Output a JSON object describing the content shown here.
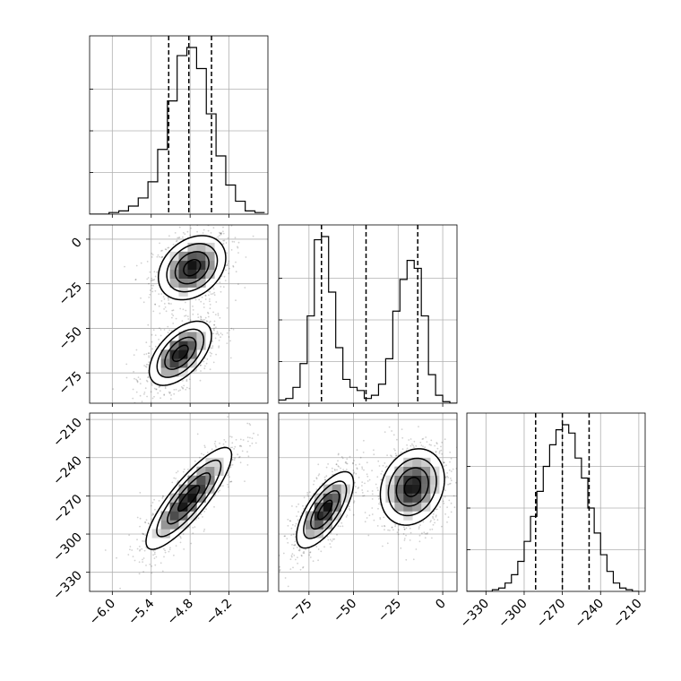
{
  "chart_data": {
    "type": "corner",
    "parameters": [
      {
        "key": "p1",
        "label": "",
        "range": [
          -6.35,
          -3.6
        ],
        "ticks": [
          -6.0,
          -5.4,
          -4.8,
          -4.2
        ],
        "tick_labels": [
          "−6.0",
          "−5.4",
          "−4.8",
          "−4.2"
        ],
        "quantiles": [
          -5.13,
          -4.82,
          -4.47
        ]
      },
      {
        "key": "p2",
        "label": "",
        "range": [
          -92,
          8
        ],
        "ticks": [
          -75,
          -50,
          -25,
          0
        ],
        "tick_labels": [
          "−75",
          "−50",
          "−25",
          "0"
        ],
        "quantiles": [
          -68,
          -43,
          -14
        ]
      },
      {
        "key": "p3",
        "label": "",
        "range": [
          -345,
          -205
        ],
        "ticks": [
          -330,
          -300,
          -270,
          -240,
          -210
        ],
        "tick_labels": [
          "−330",
          "−300",
          "−270",
          "−240",
          "−210"
        ],
        "quantiles": [
          -291,
          -270,
          -249
        ]
      }
    ],
    "histograms": [
      {
        "param": "p1",
        "bin_edges": [
          -6.35,
          -6.2,
          -6.05,
          -5.9,
          -5.75,
          -5.6,
          -5.45,
          -5.3,
          -5.15,
          -5.0,
          -4.85,
          -4.7,
          -4.55,
          -4.4,
          -4.25,
          -4.1,
          -3.95,
          -3.8,
          -3.65
        ],
        "counts": [
          0,
          0,
          1,
          2,
          5,
          10,
          20,
          40,
          70,
          98,
          103,
          90,
          62,
          36,
          18,
          8,
          2,
          1
        ]
      },
      {
        "param": "p2",
        "bin_edges": [
          -92,
          -88,
          -84,
          -80,
          -76,
          -72,
          -68,
          -64,
          -60,
          -56,
          -52,
          -48,
          -44,
          -40,
          -36,
          -32,
          -28,
          -24,
          -20,
          -16,
          -12,
          -8,
          -4,
          0,
          4,
          8
        ],
        "counts": [
          2,
          3,
          10,
          25,
          55,
          103,
          105,
          70,
          35,
          15,
          10,
          8,
          3,
          5,
          12,
          28,
          58,
          78,
          90,
          85,
          55,
          18,
          5,
          1,
          0
        ]
      },
      {
        "param": "p3",
        "bin_edges": [
          -345,
          -340,
          -335,
          -330,
          -325,
          -320,
          -315,
          -310,
          -305,
          -300,
          -295,
          -290,
          -285,
          -280,
          -275,
          -270,
          -265,
          -260,
          -255,
          -250,
          -245,
          -240,
          -235,
          -230,
          -225,
          -220,
          -215,
          -210
        ],
        "counts": [
          0,
          0,
          0,
          0,
          1,
          2,
          5,
          10,
          18,
          30,
          45,
          60,
          75,
          88,
          97,
          100,
          95,
          80,
          68,
          50,
          35,
          22,
          12,
          5,
          2,
          1,
          0
        ]
      }
    ],
    "density_2d": [
      {
        "x": "p1",
        "y": "p2",
        "modes": [
          {
            "cx": -4.77,
            "cy": -16,
            "sx": 0.26,
            "sy": 9,
            "rho": 0.3,
            "w": 1.0
          },
          {
            "cx": -4.95,
            "cy": -64,
            "sx": 0.24,
            "sy": 9,
            "rho": 0.55,
            "w": 1.0
          }
        ]
      },
      {
        "x": "p1",
        "y": "p3",
        "modes": [
          {
            "cx": -4.82,
            "cy": -272,
            "sx": 0.33,
            "sy": 20,
            "rho": 0.85,
            "w": 1.0
          }
        ]
      },
      {
        "x": "p2",
        "y": "p3",
        "modes": [
          {
            "cx": -66,
            "cy": -281,
            "sx": 8,
            "sy": 15,
            "rho": 0.7,
            "w": 1.0
          },
          {
            "cx": -17,
            "cy": -263,
            "sx": 9,
            "sy": 15,
            "rho": 0.2,
            "w": 1.0
          }
        ]
      }
    ],
    "grid": true,
    "legend": "none"
  }
}
